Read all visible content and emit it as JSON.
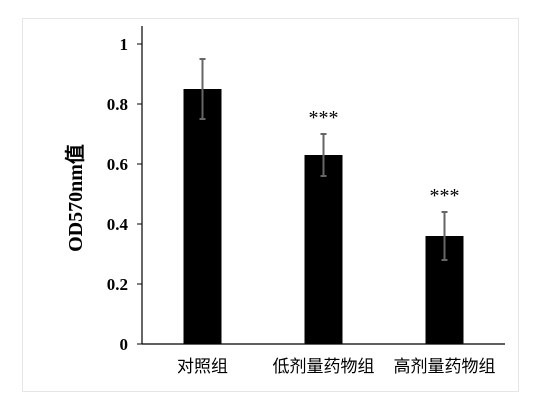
{
  "chart_data": {
    "type": "bar",
    "title": "",
    "xlabel": "",
    "ylabel": "OD570nm值",
    "ylim": [
      0,
      1
    ],
    "yticks": [
      0,
      0.2,
      0.4,
      0.6,
      0.8,
      1
    ],
    "ytick_labels": [
      "0",
      "0.2",
      "0.4",
      "0.6",
      "0.8",
      "1"
    ],
    "categories": [
      "对照组",
      "低剂量药物组",
      "高剂量药物组"
    ],
    "values": [
      0.85,
      0.63,
      0.36
    ],
    "errors": [
      0.1,
      0.07,
      0.08
    ],
    "annotations": [
      "",
      "***",
      "***"
    ],
    "grid": false,
    "bar_color": "#000000",
    "error_bar_color": "#666666"
  }
}
